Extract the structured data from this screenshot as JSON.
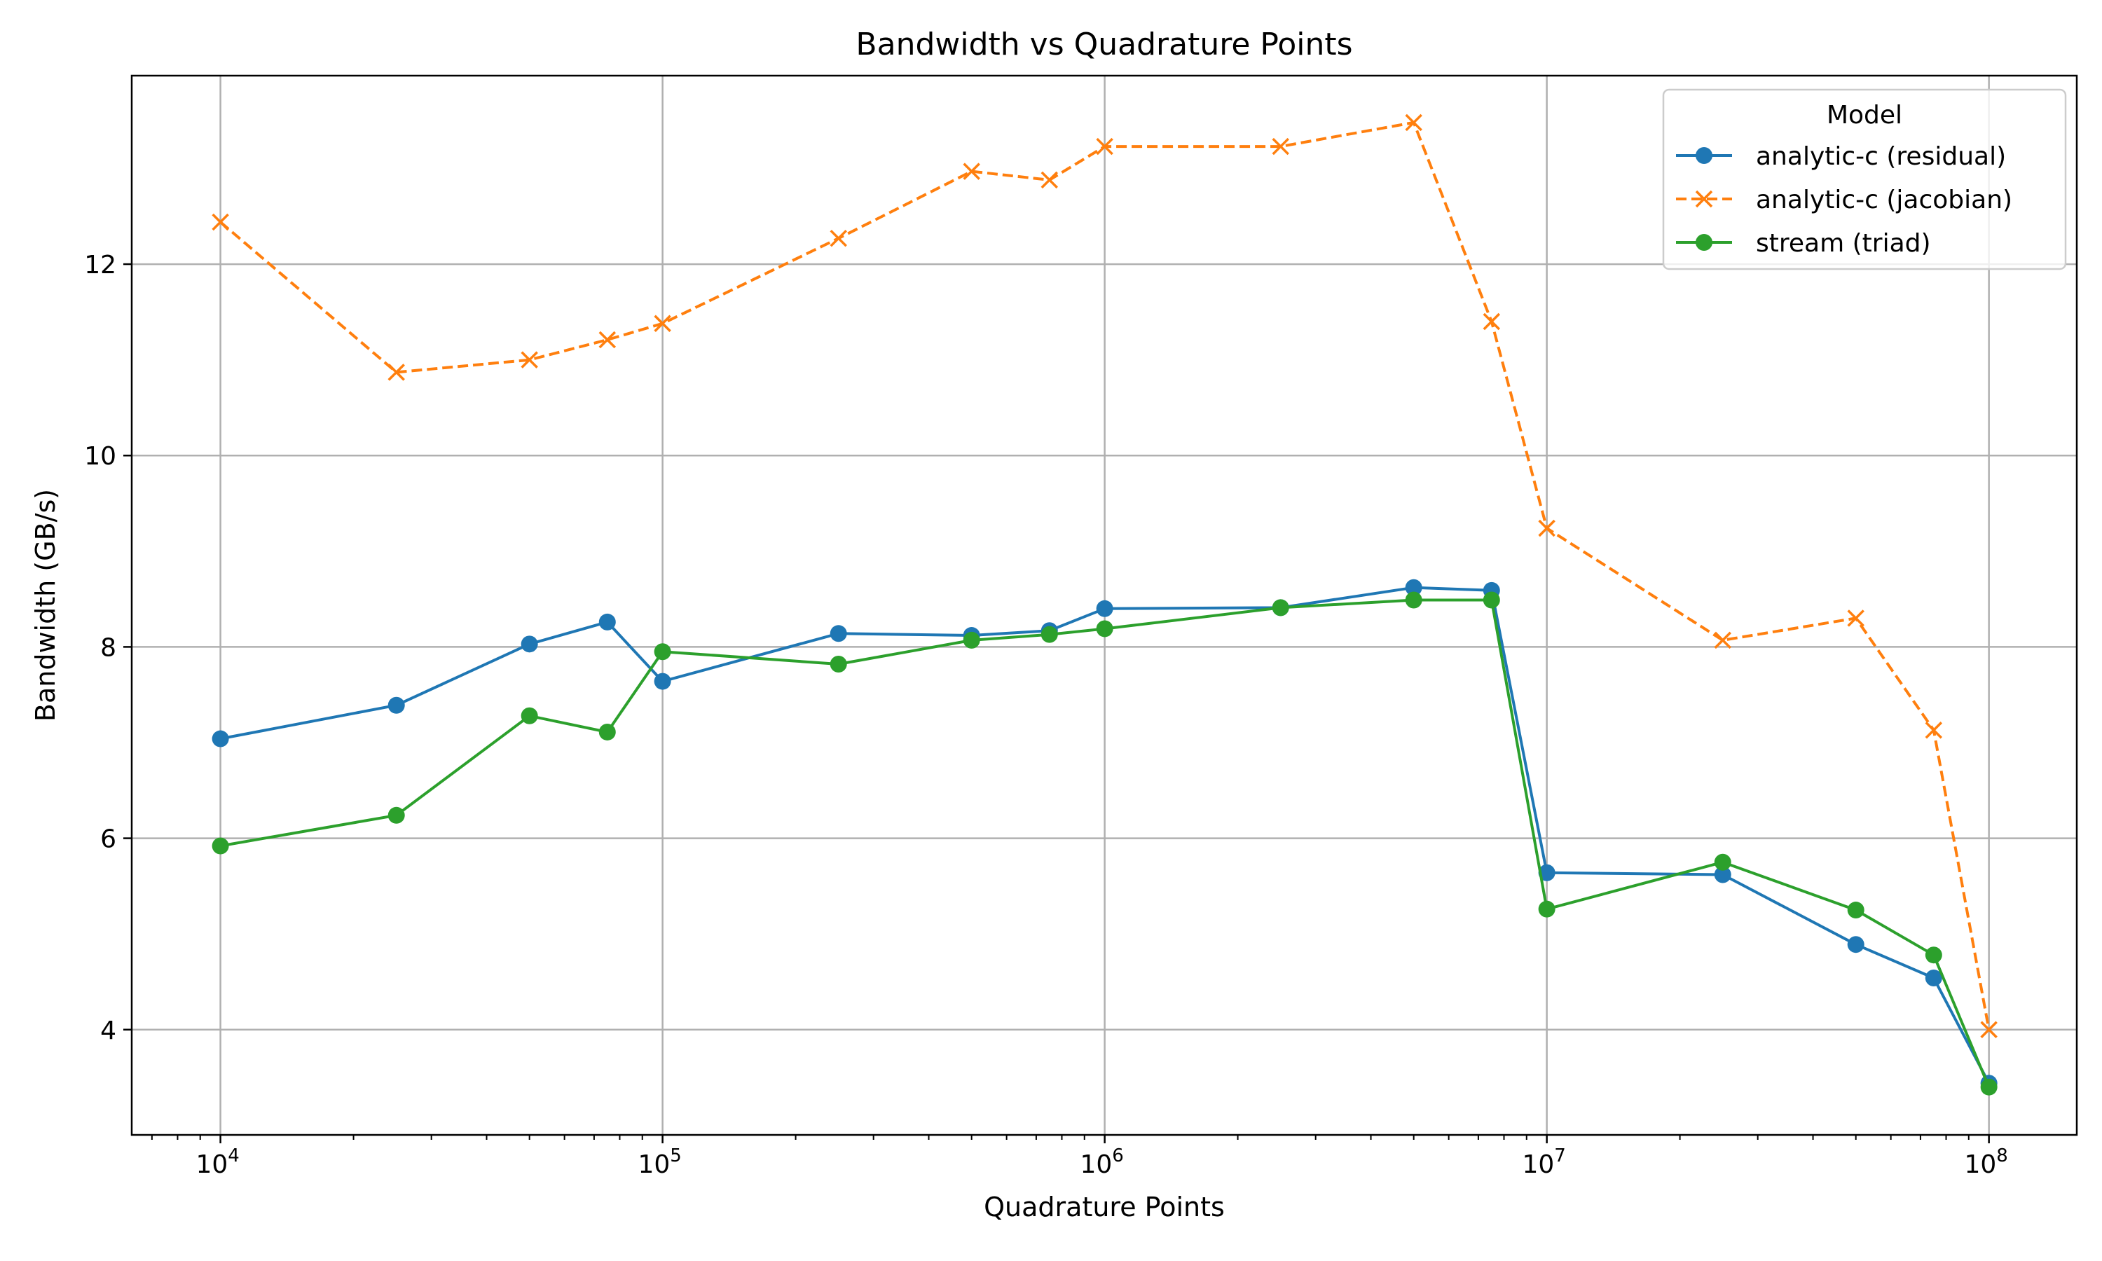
{
  "chart_data": {
    "type": "line",
    "title": "Bandwidth vs Quadrature Points",
    "xlabel": "Quadrature Points",
    "ylabel": "Bandwidth (GB/s)",
    "x_scale": "log",
    "xlim": [
      6300,
      158000000
    ],
    "ylim": [
      2.9,
      13.97
    ],
    "x_ticks": [
      {
        "value": 10000,
        "base": "10",
        "exp": "4"
      },
      {
        "value": 100000,
        "base": "10",
        "exp": "5"
      },
      {
        "value": 1000000,
        "base": "10",
        "exp": "6"
      },
      {
        "value": 10000000,
        "base": "10",
        "exp": "7"
      },
      {
        "value": 100000000,
        "base": "10",
        "exp": "8"
      }
    ],
    "y_ticks": [
      {
        "value": 4,
        "label": "4"
      },
      {
        "value": 6,
        "label": "6"
      },
      {
        "value": 8,
        "label": "8"
      },
      {
        "value": 10,
        "label": "10"
      },
      {
        "value": 12,
        "label": "12"
      }
    ],
    "grid": true,
    "legend": {
      "title": "Model",
      "position": "top-right"
    },
    "x": [
      10000,
      25000,
      50000,
      75000,
      100000,
      250000,
      500000,
      750000,
      1000000,
      2500000,
      5000000,
      7500000,
      10000000,
      25000000,
      50000000,
      75000000,
      100000000
    ],
    "series": [
      {
        "name": "analytic-c (residual)",
        "color": "#1f77b4",
        "marker": "circle",
        "linestyle": "solid",
        "values": [
          7.04,
          7.39,
          8.03,
          8.26,
          7.64,
          8.14,
          8.12,
          8.17,
          8.4,
          8.41,
          8.62,
          8.59,
          5.64,
          5.62,
          4.89,
          4.54,
          3.44
        ]
      },
      {
        "name": "analytic-c (jacobian)",
        "color": "#ff7f0e",
        "marker": "x",
        "linestyle": "dashed",
        "values": [
          12.44,
          10.87,
          11.0,
          11.21,
          11.38,
          12.27,
          12.97,
          12.88,
          13.23,
          13.23,
          13.48,
          11.4,
          9.24,
          8.07,
          8.3,
          7.13,
          4.0
        ]
      },
      {
        "name": "stream (triad)",
        "color": "#2ca02c",
        "marker": "circle",
        "linestyle": "solid",
        "values": [
          5.92,
          6.24,
          7.28,
          7.11,
          7.95,
          7.82,
          8.07,
          8.13,
          8.19,
          8.41,
          8.49,
          8.49,
          5.26,
          5.75,
          5.25,
          4.78,
          3.4
        ]
      }
    ]
  }
}
